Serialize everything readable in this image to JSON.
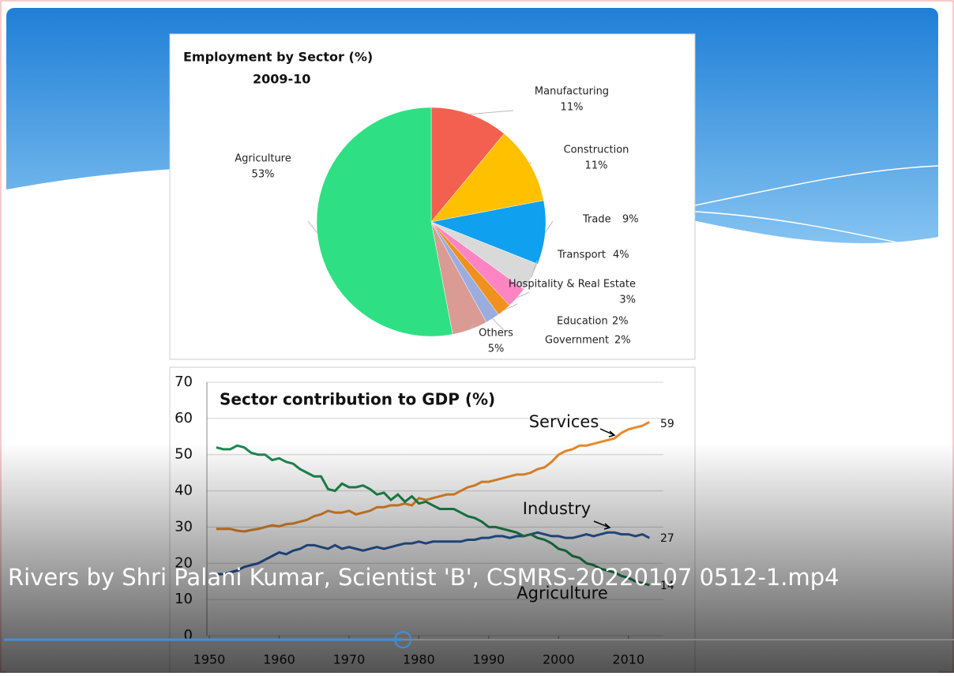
{
  "player": {
    "title": "Rivers by Shri Palani Kumar, Scientist 'B', CSMRS-20220107 0512-1.mp4",
    "progress": 0.42
  },
  "chart_data": [
    {
      "type": "pie",
      "title": "Employment by Sector (%)",
      "subtitle": "2009-10",
      "categories": [
        "Manufacturing",
        "Construction",
        "Trade",
        "Transport",
        "Hospitality & Real Estate",
        "Education",
        "Government",
        "Others",
        "Agriculture"
      ],
      "values": [
        11,
        11,
        9,
        4,
        3,
        2,
        2,
        5,
        53
      ],
      "value_labels": [
        "11%",
        "11%",
        "9%",
        "4%",
        "3%",
        "2%",
        "2%",
        "5%",
        "53%"
      ],
      "colors": [
        "#f4604f",
        "#ffc000",
        "#0fa0f0",
        "#d9d9d9",
        "#ff85c2",
        "#f0901f",
        "#9badde",
        "#d99b94",
        "#2ee083"
      ]
    },
    {
      "type": "line",
      "title": "Sector contribution to GDP (%)",
      "x": [
        1951,
        1952,
        1953,
        1954,
        1955,
        1956,
        1957,
        1958,
        1959,
        1960,
        1961,
        1962,
        1963,
        1964,
        1965,
        1966,
        1967,
        1968,
        1969,
        1970,
        1971,
        1972,
        1973,
        1974,
        1975,
        1976,
        1977,
        1978,
        1979,
        1980,
        1981,
        1982,
        1983,
        1984,
        1985,
        1986,
        1987,
        1988,
        1989,
        1990,
        1991,
        1992,
        1993,
        1994,
        1995,
        1996,
        1997,
        1998,
        1999,
        2000,
        2001,
        2002,
        2003,
        2004,
        2005,
        2006,
        2007,
        2008,
        2009,
        2010,
        2011,
        2012,
        2013
      ],
      "series": [
        {
          "name": "Services",
          "color": "#e8892a",
          "values": [
            29.5,
            29.5,
            29.5,
            29,
            28.8,
            29.2,
            29.5,
            30,
            30.5,
            30.2,
            30.8,
            31,
            31.5,
            32,
            33,
            33.5,
            34.5,
            34,
            34,
            34.5,
            33.5,
            34,
            34.5,
            35.5,
            35.5,
            36,
            36,
            36.5,
            36,
            38,
            37.5,
            38,
            38.5,
            39,
            39,
            40,
            41,
            41.5,
            42.5,
            42.5,
            43,
            43.5,
            44,
            44.5,
            44.5,
            45,
            46,
            46.5,
            48,
            50,
            51,
            51.5,
            52.5,
            52.5,
            53,
            53.5,
            54,
            54.5,
            56,
            57,
            57.5,
            58,
            59
          ]
        },
        {
          "name": "Industry",
          "color": "#2b5fa8",
          "values": [
            17,
            17,
            17.5,
            18,
            19,
            19.5,
            20,
            21,
            22,
            23,
            22.5,
            23.5,
            24,
            25,
            25,
            24.5,
            24,
            25,
            24,
            24.5,
            24,
            23.5,
            24,
            24.5,
            24,
            24.5,
            25,
            25.5,
            25.5,
            26,
            25.5,
            26,
            26,
            26,
            26,
            26,
            26.5,
            26.5,
            27,
            27,
            27.5,
            27.5,
            27,
            27.5,
            27.5,
            28,
            28.5,
            28,
            27.5,
            27.5,
            27,
            27,
            27.5,
            28,
            27.5,
            28,
            28.5,
            28.5,
            28,
            28,
            27.5,
            28,
            27
          ]
        },
        {
          "name": "Agriculture",
          "color": "#1e8a4f",
          "values": [
            52,
            51.5,
            51.5,
            52.5,
            52,
            50.5,
            50,
            50,
            48.5,
            49,
            48,
            47.5,
            46,
            45,
            44,
            44,
            40.5,
            40,
            42,
            41,
            41,
            41.5,
            40.5,
            39,
            39.5,
            37.5,
            39,
            37,
            38.5,
            36.5,
            37,
            36,
            35,
            35,
            35,
            34,
            33,
            32.5,
            31.5,
            30,
            30,
            29.5,
            29,
            28.5,
            27.5,
            28,
            27,
            26.5,
            25.5,
            24,
            23.5,
            22,
            21.5,
            20,
            19.5,
            18.5,
            18,
            17.5,
            16.5,
            16,
            15,
            14.5,
            14
          ]
        }
      ],
      "xlim": [
        1950,
        2015
      ],
      "xticks": [
        1950,
        1960,
        1970,
        1980,
        1990,
        2000,
        2010
      ],
      "ylim": [
        0,
        70
      ],
      "yticks": [
        0,
        10,
        20,
        30,
        40,
        50,
        60,
        70
      ],
      "grid": true
    }
  ]
}
